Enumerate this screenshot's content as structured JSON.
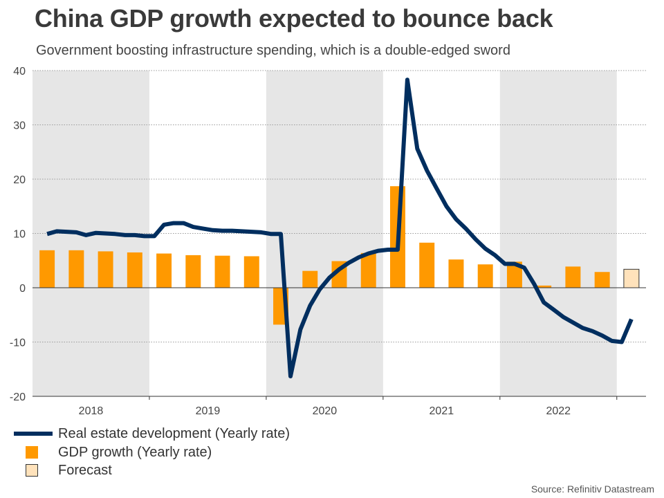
{
  "header": {
    "title": "China GDP growth expected to bounce back",
    "subtitle": "Government boosting infrastructure spending, which is a double-edged sword"
  },
  "source": "Source: Refinitiv Datastream",
  "colors": {
    "line": "#002e5f",
    "bar": "#ff9900",
    "forecast_fill": "#ffe2bb",
    "forecast_border": "#333333",
    "shade": "#e6e6e6"
  },
  "legend": [
    {
      "label": "Real estate development (Yearly rate)",
      "kind": "line"
    },
    {
      "label": "GDP growth (Yearly rate)",
      "kind": "bar"
    },
    {
      "label": "Forecast",
      "kind": "forecast"
    }
  ],
  "chart_data": {
    "type": "bar+line",
    "title": "China GDP growth expected to bounce back",
    "ylim": [
      -20,
      40
    ],
    "yticks": [
      40,
      30,
      20,
      10,
      0,
      -10,
      -20
    ],
    "xlim": [
      0,
      21
    ],
    "year_labels": [
      "2018",
      "2019",
      "2020",
      "2021",
      "2022"
    ],
    "year_spans": [
      [
        0,
        4
      ],
      [
        4,
        8
      ],
      [
        8,
        12
      ],
      [
        12,
        16
      ],
      [
        16,
        20
      ]
    ],
    "shaded_years": [
      "2018",
      "2020",
      "2022"
    ],
    "grid": true,
    "bar_series": {
      "name": "GDP growth (Yearly rate)",
      "quarters": [
        "2018 Q1",
        "2018 Q2",
        "2018 Q3",
        "2018 Q4",
        "2019 Q1",
        "2019 Q2",
        "2019 Q3",
        "2019 Q4",
        "2020 Q1",
        "2020 Q2",
        "2020 Q3",
        "2020 Q4",
        "2021 Q1",
        "2021 Q2",
        "2021 Q3",
        "2021 Q4",
        "2022 Q1",
        "2022 Q2",
        "2022 Q3",
        "2022 Q4",
        "2023 Q1"
      ],
      "values": [
        6.9,
        6.9,
        6.7,
        6.5,
        6.3,
        6.0,
        5.9,
        5.8,
        -6.8,
        3.1,
        4.9,
        6.4,
        18.7,
        8.3,
        5.2,
        4.3,
        4.8,
        0.4,
        3.9,
        2.9,
        3.4
      ],
      "forecast": [
        false,
        false,
        false,
        false,
        false,
        false,
        false,
        false,
        false,
        false,
        false,
        false,
        false,
        false,
        false,
        false,
        false,
        false,
        false,
        false,
        true
      ]
    },
    "line_series": {
      "name": "Real estate development (Yearly rate)",
      "x": [
        0.5,
        0.83,
        1.17,
        1.5,
        1.83,
        2.17,
        2.5,
        2.83,
        3.17,
        3.5,
        3.83,
        4.17,
        4.5,
        4.83,
        5.17,
        5.5,
        5.83,
        6.17,
        6.5,
        6.83,
        7.17,
        7.5,
        7.83,
        8.17,
        8.5,
        8.83,
        9.17,
        9.5,
        9.83,
        10.17,
        10.5,
        10.83,
        11.17,
        11.5,
        11.83,
        12.17,
        12.5,
        12.83,
        13.17,
        13.5,
        13.83,
        14.17,
        14.5,
        14.83,
        15.17,
        15.5,
        15.83,
        16.17,
        16.5,
        16.83,
        17.17,
        17.5,
        17.83,
        18.17,
        18.5,
        18.83,
        19.17,
        19.5,
        19.83,
        20.17,
        20.5
      ],
      "values": [
        9.9,
        10.4,
        10.3,
        10.2,
        9.7,
        10.1,
        10.0,
        9.9,
        9.7,
        9.7,
        9.5,
        9.5,
        11.6,
        11.9,
        11.9,
        11.2,
        10.9,
        10.6,
        10.5,
        10.5,
        10.4,
        10.3,
        10.2,
        9.9,
        9.9,
        -16.3,
        -7.7,
        -3.3,
        -0.3,
        1.9,
        3.4,
        4.6,
        5.6,
        6.3,
        6.8,
        7.0,
        7.0,
        38.3,
        25.6,
        21.6,
        18.3,
        15.0,
        12.6,
        10.9,
        8.9,
        7.2,
        6.0,
        4.4,
        4.4,
        3.7,
        0.7,
        -2.7,
        -4.0,
        -5.4,
        -6.4,
        -7.4,
        -8.0,
        -8.8,
        -9.8,
        -10.0,
        -5.8
      ]
    }
  }
}
